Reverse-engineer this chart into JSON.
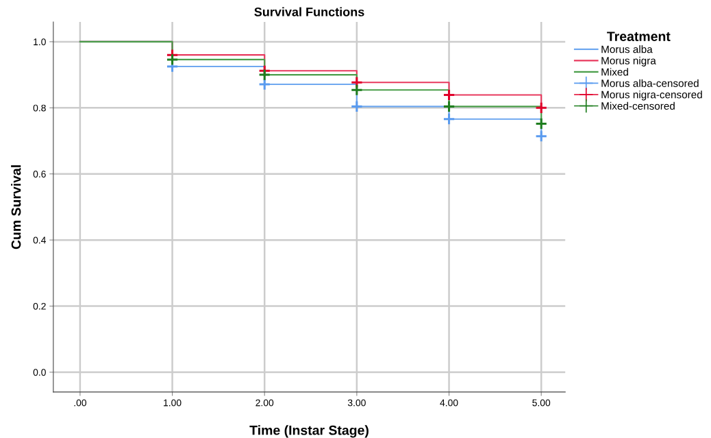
{
  "chart_data": {
    "type": "step",
    "title": "Survival Functions",
    "xlabel": "Time (Instar Stage)",
    "ylabel": "Cum Survival",
    "legend_title": "Treatment",
    "xlim": [
      -0.29,
      5.26
    ],
    "ylim": [
      -0.06,
      1.06
    ],
    "xticks": [
      {
        "value": 0,
        "label": ".00"
      },
      {
        "value": 1,
        "label": "1.00"
      },
      {
        "value": 2,
        "label": "2.00"
      },
      {
        "value": 3,
        "label": "3.00"
      },
      {
        "value": 4,
        "label": "4.00"
      },
      {
        "value": 5,
        "label": "5.00"
      }
    ],
    "yticks": [
      {
        "value": 0,
        "label": "0.0"
      },
      {
        "value": 0.2,
        "label": "0.2"
      },
      {
        "value": 0.4,
        "label": "0.4"
      },
      {
        "value": 0.6,
        "label": "0.6"
      },
      {
        "value": 0.8,
        "label": "0.8"
      },
      {
        "value": 1.0,
        "label": "1.0"
      }
    ],
    "grid": true,
    "legend": "top right",
    "series": [
      {
        "name": "Morus alba",
        "color": "#6fa8f0",
        "x": [
          0,
          1,
          2,
          3,
          4,
          5
        ],
        "values": [
          1.0,
          0.925,
          0.871,
          0.804,
          0.766,
          0.714
        ]
      },
      {
        "name": "Morus nigra",
        "color": "#e8385d",
        "x": [
          0,
          1,
          2,
          3,
          4,
          5
        ],
        "values": [
          1.0,
          0.96,
          0.912,
          0.877,
          0.839,
          0.8
        ]
      },
      {
        "name": "Mixed",
        "color": "#4a9e4a",
        "x": [
          0,
          1,
          2,
          3,
          4,
          5
        ],
        "values": [
          1.0,
          0.946,
          0.9,
          0.854,
          0.804,
          0.752
        ]
      },
      {
        "name": "Morus alba-censored",
        "type": "scatter",
        "marker": "cross",
        "color": "#5a9bef",
        "x": [
          1,
          2,
          3,
          4,
          5
        ],
        "values": [
          0.925,
          0.871,
          0.804,
          0.766,
          0.714
        ]
      },
      {
        "name": "Morus nigra-censored",
        "type": "scatter",
        "marker": "cross",
        "color": "#e0002a",
        "x": [
          1,
          2,
          3,
          4,
          5
        ],
        "values": [
          0.96,
          0.912,
          0.877,
          0.839,
          0.8
        ]
      },
      {
        "name": "Mixed-censored",
        "type": "scatter",
        "marker": "cross",
        "color": "#1e7d1e",
        "x": [
          1,
          2,
          3,
          4,
          5
        ],
        "values": [
          0.946,
          0.9,
          0.854,
          0.804,
          0.752
        ]
      }
    ]
  }
}
